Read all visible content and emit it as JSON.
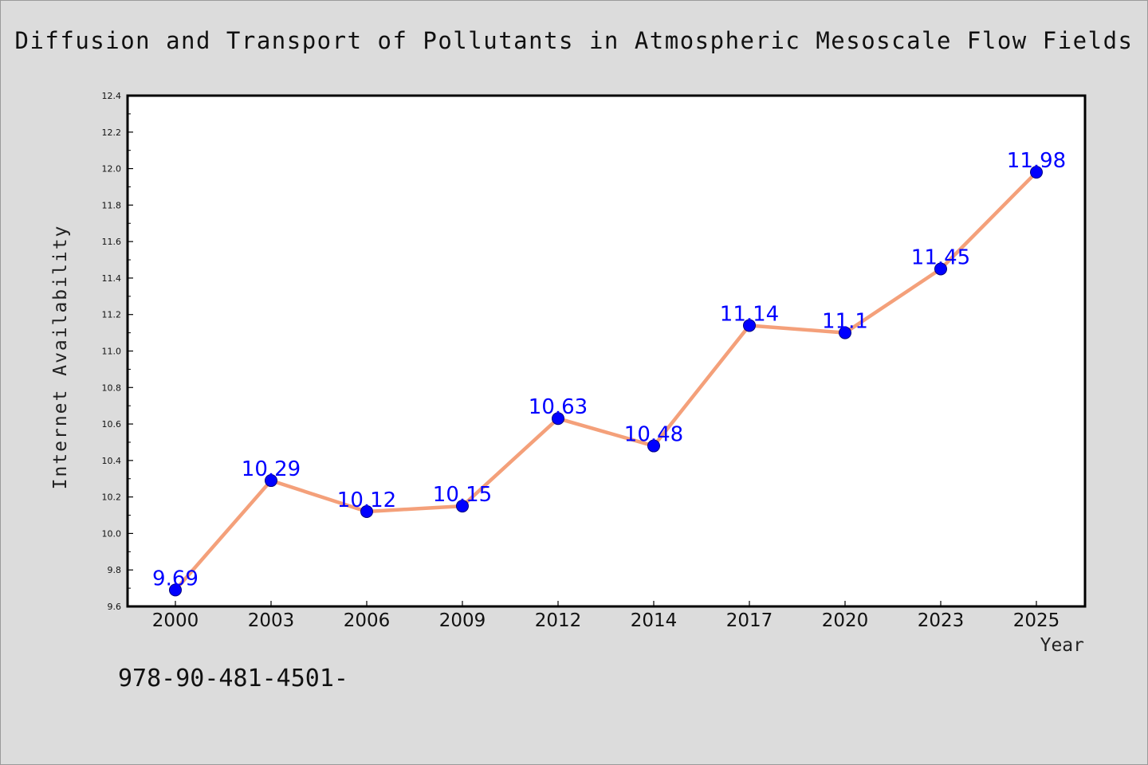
{
  "chart_data": {
    "type": "line",
    "title": "Diffusion and Transport of Pollutants in Atmospheric Mesoscale Flow Fields",
    "xlabel": "Year",
    "ylabel": "Internet Availability",
    "categories": [
      "2000",
      "2003",
      "2006",
      "2009",
      "2012",
      "2014",
      "2017",
      "2020",
      "2023",
      "2025"
    ],
    "series": [
      {
        "values": [
          9.69,
          10.29,
          10.12,
          10.15,
          10.63,
          10.48,
          11.14,
          11.1,
          11.45,
          11.98
        ],
        "line_color": "#f4a07a",
        "marker_color": "#0000ff"
      }
    ],
    "data_labels": [
      "9.69",
      "10.29",
      "10.12",
      "10.15",
      "10.63",
      "10.48",
      "11.14",
      "11.1",
      "11.45",
      "11.98"
    ],
    "ylim": [
      9.6,
      12.4
    ],
    "yticks": [
      "9.6",
      "9.8",
      "10.0",
      "10.2",
      "10.4",
      "10.6",
      "10.8",
      "11.0",
      "11.2",
      "11.4",
      "11.6",
      "11.8",
      "12.0",
      "12.2",
      "12.4"
    ],
    "grid": false,
    "legend": "none"
  },
  "footer": {
    "code": "978-90-481-4501-"
  },
  "colors": {
    "background": "#dcdcdc",
    "plot_background": "#ffffff",
    "line": "#f4a07a",
    "marker": "#0000ff",
    "data_label": "#0000ff"
  }
}
